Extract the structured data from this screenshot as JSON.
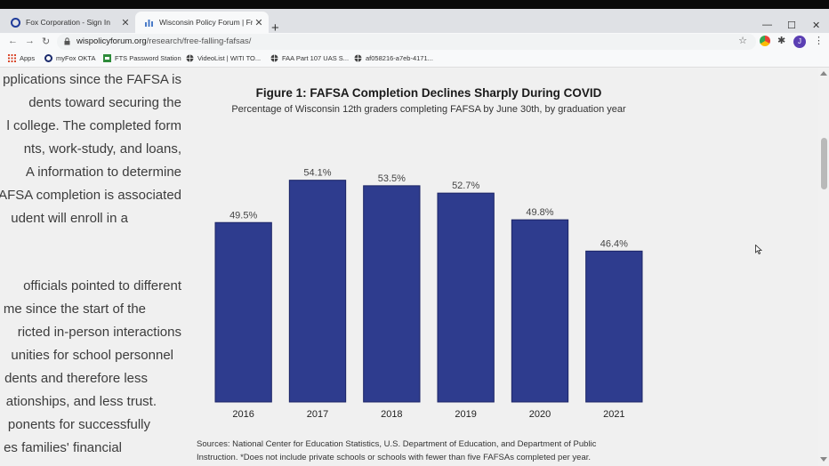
{
  "browser": {
    "tabs": [
      {
        "title": "Fox Corporation - Sign In",
        "active": false
      },
      {
        "title": "Wisconsin Policy Forum | Free-Fa",
        "active": true
      }
    ],
    "url_domain": "wispolicyforum.org",
    "url_path": "/research/free-falling-fafsas/",
    "profile_initial": "J",
    "bookmarks": [
      {
        "label": "Apps",
        "icon": "apps-grid-icon"
      },
      {
        "label": "myFox OKTA",
        "icon": "okta-icon"
      },
      {
        "label": "FTS Password Station",
        "icon": "password-station-icon"
      },
      {
        "label": "VideoList | WITI TO...",
        "icon": "globe-icon"
      },
      {
        "label": "FAA Part 107 UAS S...",
        "icon": "globe-icon"
      },
      {
        "label": "af058216-a7eb-4171...",
        "icon": "globe-icon"
      }
    ]
  },
  "article": {
    "lines": [
      "pplications since the FAFSA is",
      "dents toward securing the",
      "l college. The completed form",
      "nts, work-study, and loans,",
      "A information to determine",
      "AFSA completion is associated",
      "udent will enroll in a",
      "",
      "",
      " officials pointed to different",
      "me since the start of the",
      "ricted in-person interactions",
      "unities for school personnel",
      "dents and therefore less",
      "ationships, and less trust.",
      "ponents for successfully",
      "es families' financial"
    ]
  },
  "figure": {
    "title": "Figure 1: FAFSA Completion Declines Sharply During COVID",
    "subtitle": "Percentage of Wisconsin 12th graders completing FAFSA by June 30th, by graduation year",
    "sources": "Sources: National Center for Education Statistics, U.S. Department of Education, and Department of Public",
    "sources_line2": "Instruction. *Does not include private schools or schools with fewer than five FAFSAs completed per year."
  },
  "chart_data": {
    "type": "bar",
    "title": "Figure 1: FAFSA Completion Declines Sharply During COVID",
    "subtitle": "Percentage of Wisconsin 12th graders completing FAFSA by June 30th, by graduation year",
    "categories": [
      "2016",
      "2017",
      "2018",
      "2019",
      "2020",
      "2021"
    ],
    "values": [
      49.5,
      54.1,
      53.5,
      52.7,
      49.8,
      46.4
    ],
    "value_labels": [
      "49.5%",
      "54.1%",
      "53.5%",
      "52.7%",
      "49.8%",
      "46.4%"
    ],
    "ylim": [
      30,
      56
    ],
    "grid": false,
    "bar_color": "#2e3c8e"
  },
  "colors": {
    "bar": "#2e3c8e",
    "bar_edge": "#1c2566"
  }
}
